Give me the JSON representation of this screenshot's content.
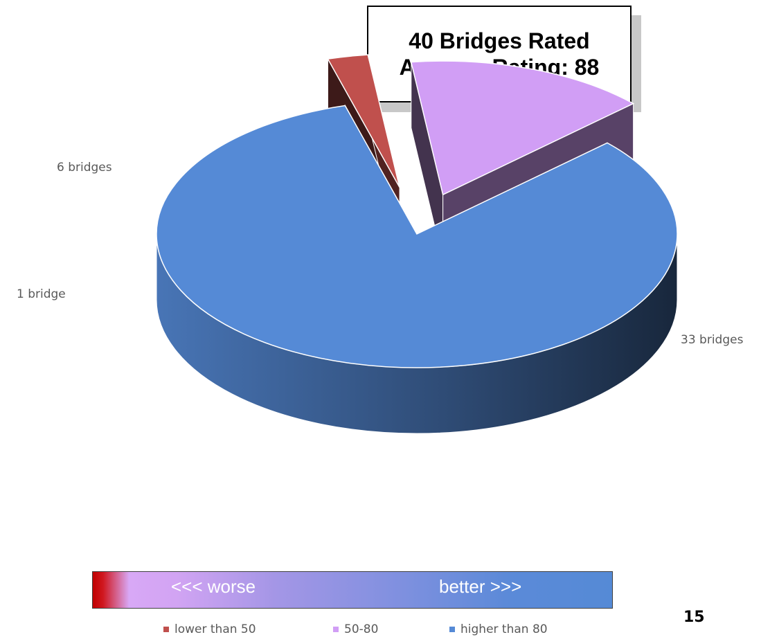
{
  "title": {
    "line1": "40 Bridges Rated",
    "line2": "Average Rating: 88"
  },
  "chart_data": {
    "type": "pie",
    "style": "3d-exploded",
    "categories": [
      "lower than 50",
      "50-80",
      "higher than 80"
    ],
    "values": [
      1,
      6,
      33
    ],
    "data_labels": [
      "1 bridge",
      "6 bridges",
      "33 bridges"
    ],
    "colors": [
      "#c0504d",
      "#d19ef5",
      "#558ad6"
    ],
    "legend_placement": "bottom"
  },
  "scale_bar": {
    "left_text": "<<< worse",
    "right_text": "better >>>"
  },
  "legend": [
    {
      "label": "lower than 50",
      "color": "#c0504d"
    },
    {
      "label": "50-80",
      "color": "#d19ef5"
    },
    {
      "label": "higher than 80",
      "color": "#558ad6"
    }
  ],
  "page_number": "15"
}
